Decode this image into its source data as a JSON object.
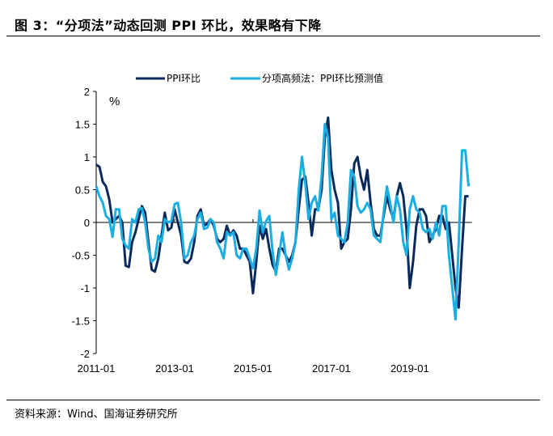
{
  "title": "图 3：“分项法”动态回测 PPI 环比，效果略有下降",
  "source": "资料来源：Wind、国海证券研究所",
  "chart_data": {
    "type": "line",
    "title": "图 3：“分项法”动态回测 PPI 环比，效果略有下降",
    "ylabel": "%",
    "xlabel": "",
    "ylim": [
      -2,
      2
    ],
    "yticks": [
      "2",
      "1.5",
      "1",
      "0.5",
      "0",
      "-0.5",
      "-1",
      "-1.5",
      "-2"
    ],
    "xticks": [
      "2011-01",
      "2013-01",
      "2015-01",
      "2017-01",
      "2019-01"
    ],
    "x_start": "2011-01",
    "legend_position": "top",
    "grid": false,
    "colors": {
      "ppi": "#0b2a5c",
      "forecast": "#1aaee3"
    },
    "series": [
      {
        "name": "PPI环比",
        "values": [
          0.88,
          0.85,
          0.62,
          0.55,
          0.35,
          0.0,
          0.05,
          0.1,
          0.0,
          -0.66,
          -0.68,
          -0.3,
          -0.15,
          0.05,
          0.25,
          0.15,
          -0.3,
          -0.72,
          -0.75,
          -0.55,
          -0.2,
          0.15,
          -0.12,
          -0.08,
          0.2,
          0.0,
          -0.2,
          -0.6,
          -0.62,
          -0.55,
          -0.3,
          0.1,
          0.2,
          -0.05,
          -0.02,
          0.05,
          -0.05,
          -0.25,
          -0.3,
          -0.25,
          -0.05,
          -0.2,
          -0.12,
          -0.2,
          -0.4,
          -0.4,
          -0.5,
          -0.6,
          -1.08,
          -0.6,
          -0.05,
          -0.25,
          -0.1,
          -0.4,
          -0.65,
          -0.75,
          -0.4,
          -0.4,
          -0.5,
          -0.6,
          -0.5,
          -0.3,
          0.2,
          0.65,
          0.7,
          0.3,
          -0.2,
          0.2,
          0.2,
          0.5,
          1.3,
          1.6,
          0.8,
          0.5,
          0.3,
          -0.4,
          -0.3,
          -0.25,
          0.2,
          0.9,
          1.0,
          0.7,
          0.5,
          0.8,
          0.3,
          -0.1,
          -0.2,
          -0.2,
          0.1,
          0.4,
          0.2,
          0.05,
          0.4,
          0.6,
          0.4,
          -0.1,
          -1.0,
          -0.6,
          -0.05,
          0.2,
          0.2,
          0.1,
          -0.3,
          -0.2,
          -0.1,
          0.1,
          0.1,
          -0.1,
          0.0,
          -0.5,
          -1.0,
          -1.3,
          -0.4,
          0.4,
          0.4
        ]
      },
      {
        "name": "分项高频法：PPI环比预测值",
        "values": [
          0.55,
          0.4,
          0.3,
          0.1,
          0.05,
          -0.22,
          0.2,
          0.2,
          -0.25,
          -0.35,
          -0.4,
          0.05,
          0.0,
          0.2,
          0.22,
          0.0,
          -0.4,
          -0.6,
          -0.55,
          -0.2,
          -0.3,
          0.05,
          0.0,
          0.02,
          0.28,
          0.3,
          0.0,
          -0.55,
          -0.5,
          -0.3,
          -0.2,
          0.05,
          0.15,
          -0.1,
          -0.08,
          0.05,
          0.0,
          -0.3,
          -0.4,
          -0.55,
          -0.15,
          -0.2,
          -0.15,
          -0.5,
          -0.55,
          -0.4,
          -0.4,
          -0.55,
          -0.7,
          -0.4,
          0.18,
          -0.15,
          0.02,
          0.1,
          -0.45,
          -0.8,
          -0.5,
          -0.15,
          -0.5,
          -0.72,
          -0.55,
          -0.3,
          0.5,
          1.0,
          0.6,
          0.05,
          0.3,
          0.4,
          0.18,
          0.7,
          1.5,
          1.3,
          0.05,
          0.15,
          -0.2,
          -0.25,
          -0.3,
          0.0,
          0.8,
          0.7,
          0.25,
          0.15,
          0.2,
          0.3,
          0.2,
          -0.2,
          -0.25,
          -0.3,
          0.15,
          0.55,
          0.3,
          0.0,
          0.4,
          0.2,
          -0.3,
          -0.5,
          0.2,
          0.4,
          0.2,
          0.15,
          -0.1,
          -0.15,
          -0.1,
          -0.25,
          0.0,
          -0.2,
          0.25,
          0.25,
          -0.5,
          -1.0,
          -1.48,
          -0.3,
          1.1,
          1.1,
          0.55
        ]
      }
    ]
  }
}
